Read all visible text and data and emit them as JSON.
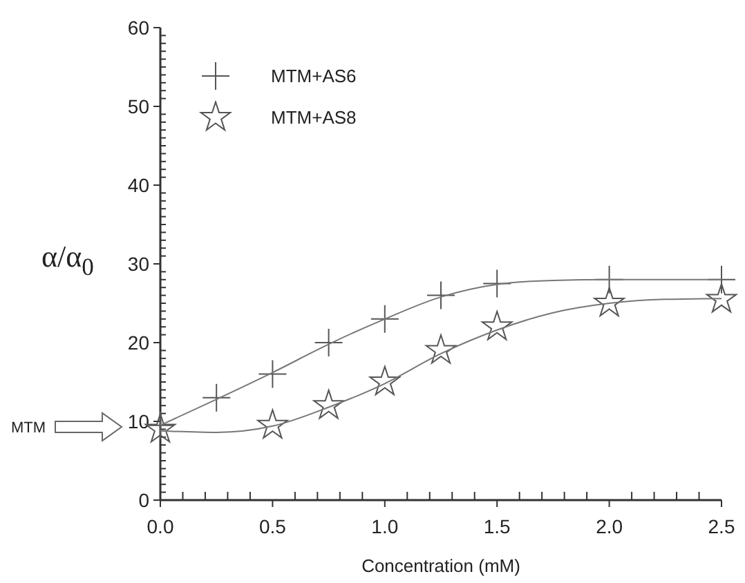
{
  "chart_data": {
    "type": "scatter",
    "xlabel": "Concentration (mM)",
    "ylabel": "α/α$_{0}$",
    "xlim": [
      0,
      2.5
    ],
    "xticks": [
      {
        "value": 0,
        "label": "0.0"
      },
      {
        "value": 0.5,
        "label": "0.5"
      },
      {
        "value": 1,
        "label": "1.0"
      },
      {
        "value": 1.5,
        "label": "1.5"
      },
      {
        "value": 2,
        "label": "2.0"
      },
      {
        "value": 2.5,
        "label": "2.5"
      }
    ],
    "ylim": [
      0,
      60
    ],
    "yticks": [
      0,
      10,
      20,
      30,
      40,
      50,
      60
    ],
    "grid": false,
    "legend": "top left",
    "annotations": [
      "MTM"
    ],
    "series": [
      {
        "name": "MTM+AS6",
        "marker": "cross",
        "color": "#555555",
        "x": [
          0,
          0.25,
          0.5,
          0.75,
          1.0,
          1.25,
          1.5,
          2.0,
          2.5
        ],
        "values": [
          9.5,
          13,
          16,
          20,
          23,
          26,
          27.5,
          28,
          28
        ]
      },
      {
        "name": "MTM+AS8",
        "marker": "star",
        "color": "#555555",
        "x": [
          0,
          0.5,
          0.75,
          1.0,
          1.25,
          1.5,
          2.0,
          2.5
        ],
        "values": [
          9,
          9.5,
          12,
          15,
          19,
          22,
          25,
          25.5
        ]
      },
      {
        "type": "line",
        "marker": "none",
        "color": "#777777",
        "x": [
          0,
          0.25,
          0.5,
          0.75,
          1.0,
          1.25,
          1.5,
          1.75,
          2.0,
          2.5
        ],
        "values": [
          9.5,
          12.8,
          16.2,
          19.8,
          23,
          25.8,
          27.4,
          27.9,
          28,
          28
        ]
      },
      {
        "type": "line",
        "marker": "none",
        "color": "#777777",
        "x": [
          0,
          0.25,
          0.5,
          0.75,
          1.0,
          1.25,
          1.5,
          1.75,
          2.0,
          2.25,
          2.5
        ],
        "values": [
          8.8,
          8.6,
          9.4,
          11.8,
          14.8,
          18.6,
          21.6,
          23.8,
          25,
          25.5,
          25.6
        ]
      }
    ]
  }
}
